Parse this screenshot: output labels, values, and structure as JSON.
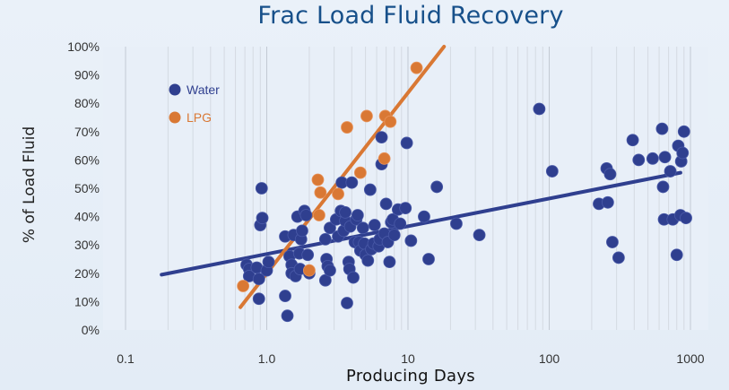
{
  "chart_data": {
    "type": "scatter",
    "title": "Frac Load Fluid Recovery",
    "xlabel": "Producing Days",
    "ylabel": "% of Load Fluid",
    "x_scale": "log",
    "xlim": [
      0.07,
      1000
    ],
    "ylim": [
      0,
      100
    ],
    "x_ticks": [
      0.1,
      1.0,
      10,
      100,
      1000
    ],
    "x_tick_labels": [
      "0.1",
      "1.0",
      "10",
      "100",
      "1000"
    ],
    "y_ticks": [
      0,
      10,
      20,
      30,
      40,
      50,
      60,
      70,
      80,
      90,
      100
    ],
    "y_tick_labels": [
      "0%",
      "10%",
      "20%",
      "30%",
      "40%",
      "50%",
      "60%",
      "70%",
      "80%",
      "90%",
      "100%"
    ],
    "grid": "vertical",
    "legend": "top-left",
    "series": [
      {
        "name": "Water",
        "color": "#2f3f8f",
        "points": [
          [
            0.72,
            23
          ],
          [
            0.75,
            21.5
          ],
          [
            0.75,
            19
          ],
          [
            0.85,
            22
          ],
          [
            0.88,
            18
          ],
          [
            0.88,
            11
          ],
          [
            0.9,
            37
          ],
          [
            0.92,
            50
          ],
          [
            0.93,
            39.5
          ],
          [
            1.0,
            21
          ],
          [
            1.03,
            24
          ],
          [
            1.35,
            33
          ],
          [
            1.35,
            12
          ],
          [
            1.4,
            5
          ],
          [
            1.45,
            26
          ],
          [
            1.5,
            23
          ],
          [
            1.5,
            20
          ],
          [
            1.55,
            33.5
          ],
          [
            1.6,
            19
          ],
          [
            1.65,
            40
          ],
          [
            1.7,
            27
          ],
          [
            1.72,
            21.5
          ],
          [
            1.75,
            32
          ],
          [
            1.78,
            35
          ],
          [
            1.85,
            42
          ],
          [
            1.9,
            40.5
          ],
          [
            1.95,
            26.5
          ],
          [
            2.0,
            20
          ],
          [
            2.6,
            32
          ],
          [
            2.6,
            17.5
          ],
          [
            2.65,
            25
          ],
          [
            2.7,
            22.5
          ],
          [
            2.8,
            21
          ],
          [
            2.8,
            36
          ],
          [
            3.1,
            39
          ],
          [
            3.2,
            33
          ],
          [
            3.35,
            42
          ],
          [
            3.4,
            52
          ],
          [
            3.5,
            35
          ],
          [
            3.6,
            38.5
          ],
          [
            3.6,
            41.5
          ],
          [
            3.7,
            9.5
          ],
          [
            3.8,
            24
          ],
          [
            3.85,
            21.5
          ],
          [
            3.9,
            36.5
          ],
          [
            4.0,
            52
          ],
          [
            4.1,
            18.5
          ],
          [
            4.2,
            31
          ],
          [
            4.3,
            39
          ],
          [
            4.4,
            40.5
          ],
          [
            4.5,
            31
          ],
          [
            4.6,
            28
          ],
          [
            4.8,
            36
          ],
          [
            4.9,
            30.5
          ],
          [
            5.0,
            26.5
          ],
          [
            5.2,
            24.5
          ],
          [
            5.4,
            49.5
          ],
          [
            5.5,
            28.5
          ],
          [
            5.7,
            30.5
          ],
          [
            5.8,
            37
          ],
          [
            6.2,
            29.5
          ],
          [
            6.3,
            32
          ],
          [
            6.5,
            68
          ],
          [
            6.5,
            58.5
          ],
          [
            6.8,
            34
          ],
          [
            7.0,
            44.5
          ],
          [
            7.2,
            31
          ],
          [
            7.4,
            24
          ],
          [
            7.6,
            38
          ],
          [
            7.8,
            39
          ],
          [
            8.0,
            33.5
          ],
          [
            8.5,
            42.5
          ],
          [
            8.8,
            37.5
          ],
          [
            9.6,
            43
          ],
          [
            9.8,
            66
          ],
          [
            10.5,
            31.5
          ],
          [
            13,
            40
          ],
          [
            14,
            25
          ],
          [
            16,
            50.5
          ],
          [
            22,
            37.5
          ],
          [
            32,
            33.5
          ],
          [
            85,
            78
          ],
          [
            105,
            56
          ],
          [
            225,
            44.5
          ],
          [
            255,
            57
          ],
          [
            260,
            45
          ],
          [
            270,
            55
          ],
          [
            280,
            31
          ],
          [
            310,
            25.5
          ],
          [
            390,
            67
          ],
          [
            430,
            60
          ],
          [
            540,
            60.5
          ],
          [
            630,
            71
          ],
          [
            640,
            50.5
          ],
          [
            650,
            39
          ],
          [
            660,
            61
          ],
          [
            720,
            56
          ],
          [
            750,
            39
          ],
          [
            800,
            26.5
          ],
          [
            820,
            65
          ],
          [
            850,
            40.5
          ],
          [
            860,
            59.5
          ],
          [
            880,
            62.5
          ],
          [
            900,
            70
          ],
          [
            930,
            39.5
          ]
        ],
        "trend_line": [
          [
            0.18,
            19.5
          ],
          [
            850,
            55.5
          ]
        ]
      },
      {
        "name": "LPG",
        "color": "#d97834",
        "points": [
          [
            0.68,
            15.5
          ],
          [
            2.0,
            21
          ],
          [
            2.3,
            53
          ],
          [
            2.35,
            40.5
          ],
          [
            2.4,
            48.5
          ],
          [
            3.2,
            48
          ],
          [
            3.7,
            71.5
          ],
          [
            4.6,
            55.5
          ],
          [
            5.1,
            75.5
          ],
          [
            6.8,
            60.5
          ],
          [
            6.9,
            75.5
          ],
          [
            7.5,
            73.5
          ],
          [
            11.5,
            92.5
          ]
        ],
        "trend_line": [
          [
            0.65,
            8
          ],
          [
            18,
            100
          ]
        ]
      }
    ]
  }
}
